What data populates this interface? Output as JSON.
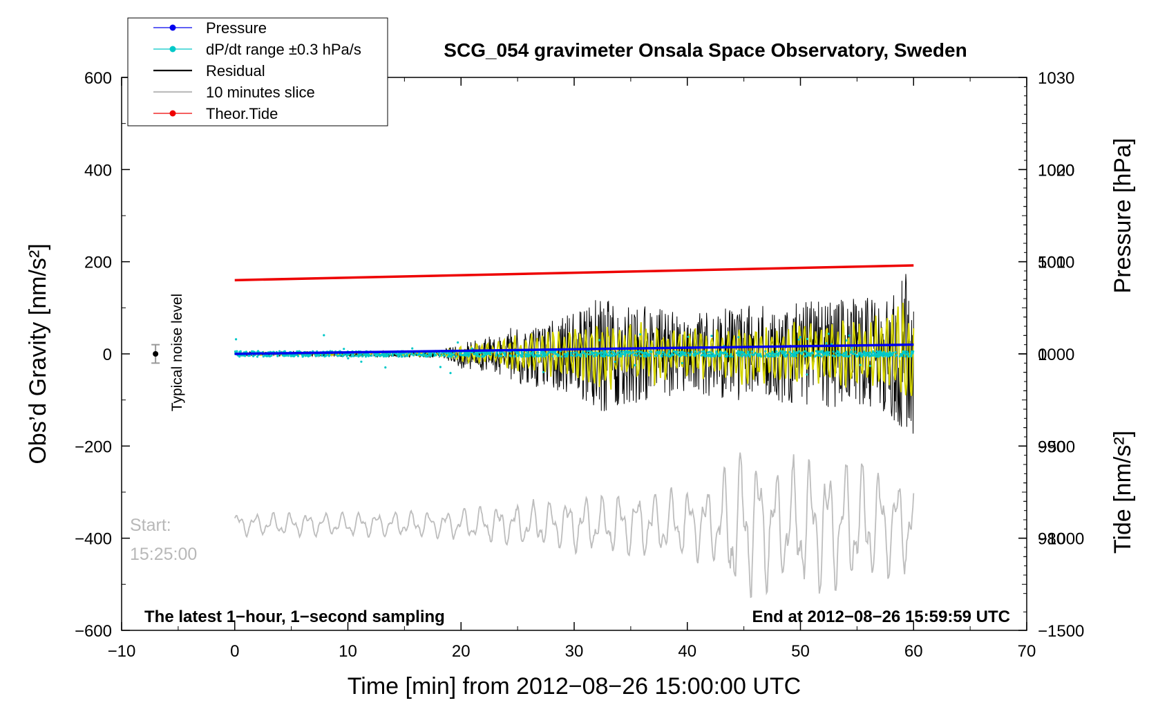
{
  "chart_data": {
    "type": "line",
    "title": "SCG_054 gravimeter Onsala Space Observatory, Sweden",
    "xlabel": "Time [min] from 2012−08−26 15:00:00 UTC",
    "ylabel_left": "Obs’d Gravity [nm/s²]",
    "ylabel_right_top": "Pressure [hPa]",
    "ylabel_right_bottom": "Tide [nm/s²]",
    "xlim": [
      -10,
      70
    ],
    "ylim_left": [
      -600,
      600
    ],
    "ylim_pressure": [
      970,
      1030
    ],
    "ylim_tide": [
      -1500,
      1500
    ],
    "x_ticks": [
      -10,
      0,
      10,
      20,
      30,
      40,
      50,
      60,
      70
    ],
    "x_tick_labels": [
      "−10",
      "0",
      "10",
      "20",
      "30",
      "40",
      "50",
      "60",
      "70"
    ],
    "left_ticks": [
      -600,
      -400,
      -200,
      0,
      200,
      400,
      600
    ],
    "left_tick_labels": [
      "−600",
      "−400",
      "−200",
      "0",
      "200",
      "400",
      "600"
    ],
    "pressure_ticks": [
      980,
      990,
      1000,
      1010,
      1020,
      1030
    ],
    "pressure_tick_labels": [
      "980",
      "990",
      "1000",
      "1010",
      "1020",
      "1030"
    ],
    "tide_ticks": [
      -1500,
      -1000,
      -500,
      0,
      500,
      1000
    ],
    "tide_tick_labels": [
      "−1500",
      "−1000",
      "−500",
      "0",
      "500",
      "1000"
    ],
    "legend": [
      {
        "label": "Pressure",
        "color": "#0000ee",
        "marker": true
      },
      {
        "label": "dP/dt range ±0.3 hPa/s",
        "color": "#00c8c8",
        "marker": true
      },
      {
        "label": "Residual",
        "color": "#000000",
        "marker": false
      },
      {
        "label": "10 minutes slice",
        "color": "#bdbdbd",
        "marker": false
      },
      {
        "label": "Theor.Tide",
        "color": "#ee0000",
        "marker": true
      }
    ],
    "annotations": {
      "bottom_left": "The latest 1−hour, 1−second sampling",
      "bottom_right": "End at 2012−08−26 15:59:59 UTC",
      "start_label": "Start:",
      "start_time": "15:25:00",
      "noise_label": "Typical noise level"
    },
    "noise_marker": {
      "x": -7,
      "y": 0,
      "err": 20
    },
    "series": [
      {
        "name": "Pressure",
        "axis": "pressure",
        "color": "#0000ee",
        "x": [
          0,
          60
        ],
        "y": [
          1000.0,
          1001.0
        ]
      },
      {
        "name": "dP/dt range ±0.3 hPa/s",
        "axis": "pressure",
        "color": "#00c8c8",
        "x": [
          0,
          60
        ],
        "center": 1000.0,
        "spread": 0.6
      },
      {
        "name": "Residual",
        "axis": "left",
        "color": "#000000",
        "x": [
          0,
          60
        ],
        "envelope_x": [
          0,
          10,
          18,
          19.5,
          20,
          23,
          25,
          30,
          32,
          35,
          40,
          45,
          50,
          55,
          58,
          59,
          60
        ],
        "envelope_y": [
          6,
          8,
          10,
          25,
          40,
          50,
          80,
          110,
          160,
          140,
          110,
          130,
          140,
          150,
          170,
          220,
          240
        ]
      },
      {
        "name": "Filtered",
        "axis": "left",
        "color": "#d4d400",
        "x": [
          0,
          60
        ]
      },
      {
        "name": "10 minutes slice",
        "axis": "left",
        "color": "#bdbdbd",
        "x": [
          0,
          60
        ],
        "baseline": -370,
        "envelope_x": [
          0,
          18,
          24,
          30,
          35,
          40,
          43,
          44,
          45,
          48,
          50,
          55,
          58,
          60
        ],
        "envelope_y": [
          25,
          30,
          45,
          60,
          70,
          80,
          90,
          200,
          170,
          130,
          150,
          140,
          120,
          100
        ]
      },
      {
        "name": "Theor.Tide",
        "axis": "tide",
        "color": "#ee0000",
        "x": [
          0,
          60
        ],
        "y": [
          400,
          480
        ]
      }
    ]
  }
}
